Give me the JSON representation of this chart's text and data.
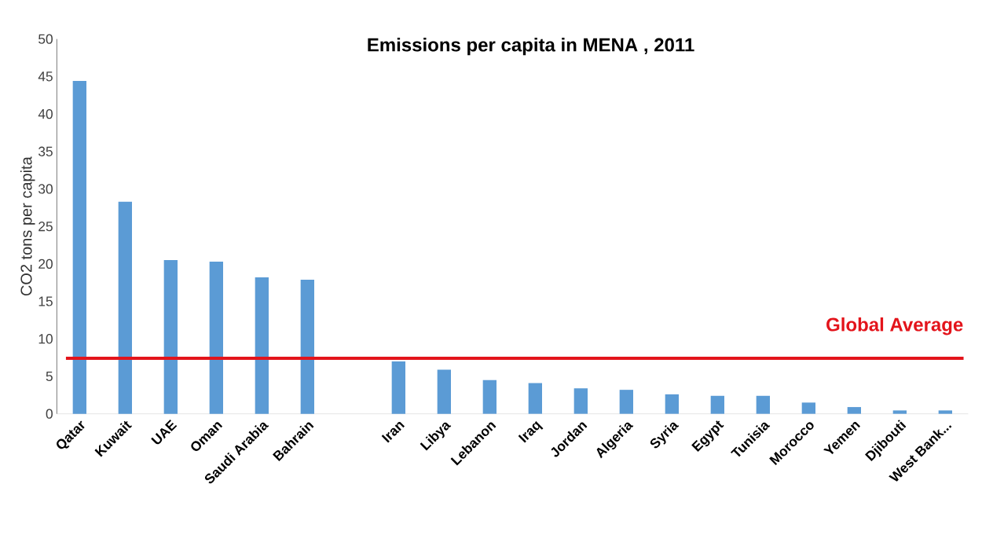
{
  "chart_data": {
    "type": "bar",
    "title": "Emissions per capita in MENA , 2011",
    "ylabel": "CO2 tons per capita",
    "categories": [
      "Qatar",
      "Kuwait",
      "UAE",
      "Oman",
      "Saudi Arabia",
      "Bahrain",
      null,
      "Iran",
      "Libya",
      "Lebanon",
      "Iraq",
      "Jordan",
      "Algeria",
      "Syria",
      "Egypt",
      "Tunisia",
      "Morocco",
      "Yemen",
      "Djibouti",
      "West Bank..."
    ],
    "values": [
      44.4,
      28.3,
      20.5,
      20.3,
      18.2,
      17.9,
      null,
      7.0,
      5.9,
      4.5,
      4.1,
      3.4,
      3.2,
      2.6,
      2.4,
      2.4,
      1.5,
      0.9,
      0.45,
      0.45
    ],
    "color": "#5b9bd5",
    "ylim": [
      0,
      50
    ],
    "yticks": [
      0,
      5,
      10,
      15,
      20,
      25,
      30,
      35,
      40,
      45,
      50
    ],
    "ref_lines": [
      {
        "axis": "y",
        "value": 7.4,
        "label": "Global Average",
        "color": "#e3141b"
      }
    ]
  }
}
